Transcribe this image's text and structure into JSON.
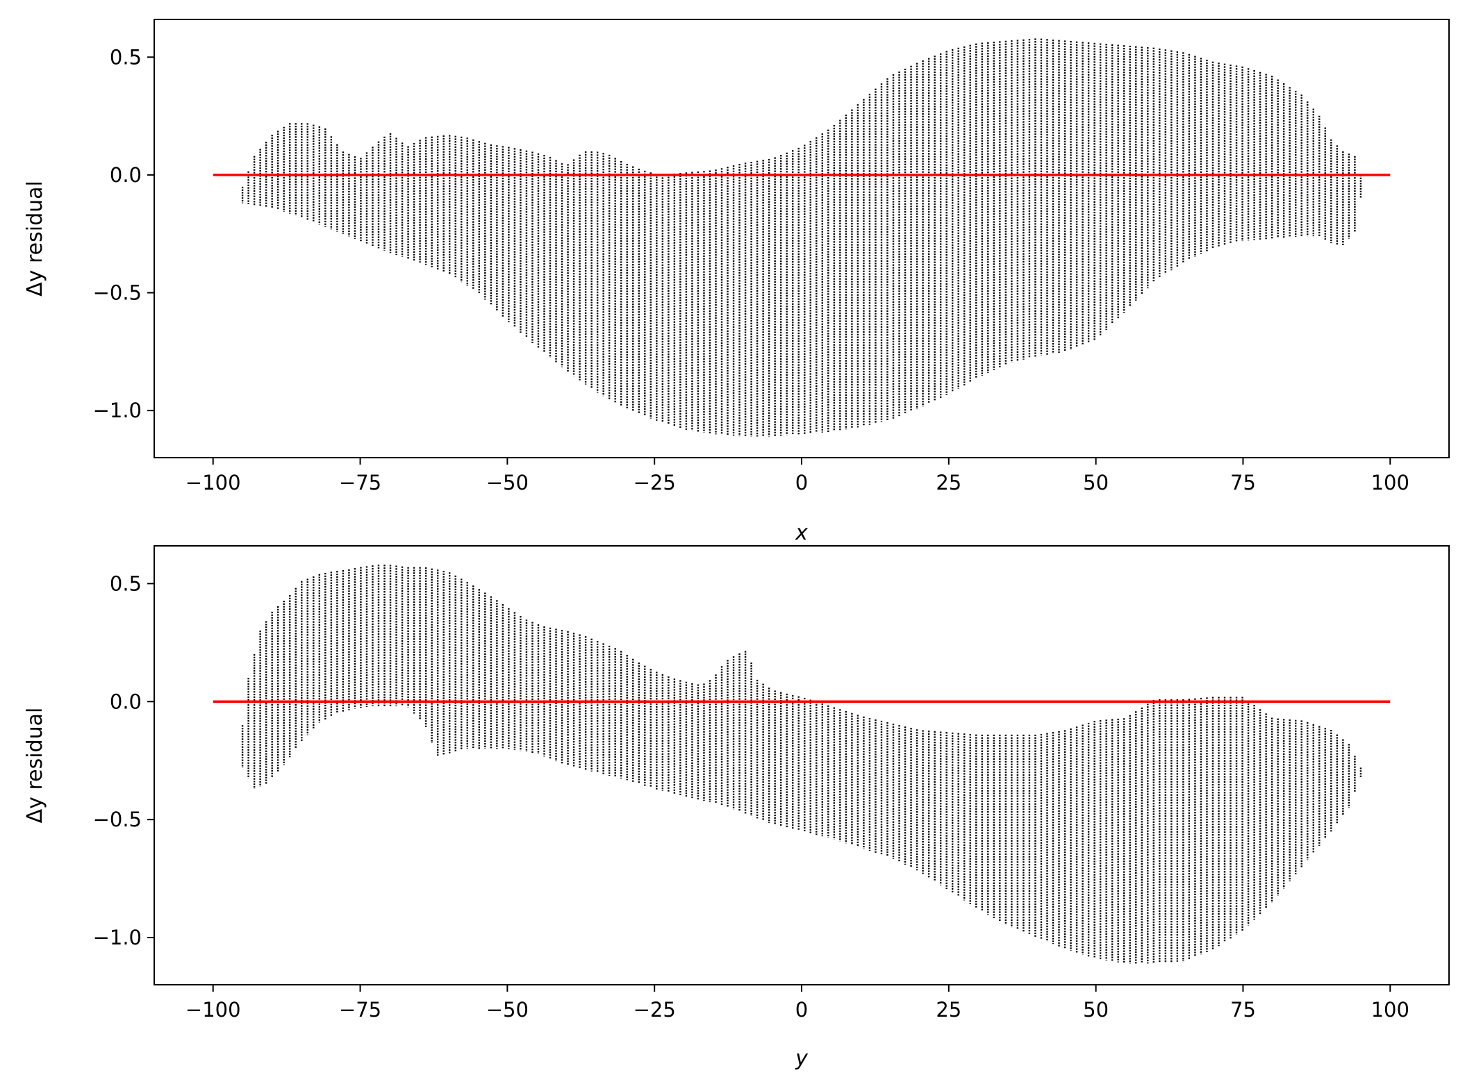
{
  "chart_data": [
    {
      "type": "scatter",
      "xlabel": "x",
      "ylabel": "Δy residual",
      "xlim": [
        -110,
        110
      ],
      "ylim": [
        -1.2,
        0.66
      ],
      "x_ticks": [
        -100,
        -75,
        -50,
        -25,
        0,
        25,
        50,
        75,
        100
      ],
      "x_tick_labels": [
        "−100",
        "−75",
        "−50",
        "−25",
        "0",
        "25",
        "50",
        "75",
        "100"
      ],
      "y_ticks": [
        0.5,
        0.0,
        -0.5,
        -1.0
      ],
      "y_tick_labels": [
        "0.5",
        "0.0",
        "−0.5",
        "−1.0"
      ],
      "grid": false,
      "x_range_of_points": [
        -95,
        95
      ],
      "upper_envelope": {
        "x": [
          -95,
          -93,
          -90,
          -87,
          -84,
          -81,
          -78,
          -75,
          -72,
          -70,
          -67,
          -64,
          -60,
          -57,
          -53,
          -50,
          -46,
          -43,
          -40,
          -37,
          -35,
          -33,
          -30,
          -27,
          -24,
          -20,
          -15,
          -10,
          -5,
          0,
          5,
          10,
          15,
          20,
          25,
          30,
          35,
          40,
          45,
          50,
          55,
          60,
          65,
          70,
          75,
          80,
          85,
          88,
          90,
          92,
          94,
          95
        ],
        "y": [
          -0.05,
          0.08,
          0.17,
          0.22,
          0.22,
          0.2,
          0.1,
          0.07,
          0.14,
          0.18,
          0.12,
          0.16,
          0.17,
          0.16,
          0.13,
          0.12,
          0.1,
          0.08,
          0.04,
          0.1,
          0.1,
          0.09,
          0.05,
          0.02,
          0.0,
          0.01,
          0.02,
          0.05,
          0.07,
          0.12,
          0.2,
          0.31,
          0.42,
          0.48,
          0.53,
          0.56,
          0.57,
          0.58,
          0.57,
          0.56,
          0.55,
          0.54,
          0.52,
          0.48,
          0.46,
          0.42,
          0.34,
          0.25,
          0.15,
          0.1,
          0.08,
          0.0
        ]
      },
      "lower_envelope": {
        "x": [
          -95,
          -90,
          -85,
          -80,
          -75,
          -70,
          -65,
          -60,
          -55,
          -50,
          -45,
          -40,
          -35,
          -30,
          -25,
          -20,
          -15,
          -10,
          -5,
          0,
          5,
          10,
          15,
          20,
          25,
          30,
          35,
          40,
          45,
          50,
          55,
          60,
          65,
          70,
          75,
          80,
          85,
          88,
          90,
          92,
          94,
          95
        ],
        "y": [
          -0.12,
          -0.14,
          -0.18,
          -0.23,
          -0.28,
          -0.33,
          -0.37,
          -0.42,
          -0.5,
          -0.62,
          -0.73,
          -0.83,
          -0.92,
          -0.99,
          -1.04,
          -1.08,
          -1.1,
          -1.11,
          -1.11,
          -1.1,
          -1.09,
          -1.07,
          -1.04,
          -0.99,
          -0.93,
          -0.86,
          -0.8,
          -0.77,
          -0.75,
          -0.7,
          -0.58,
          -0.45,
          -0.37,
          -0.31,
          -0.28,
          -0.27,
          -0.26,
          -0.26,
          -0.29,
          -0.3,
          -0.24,
          -0.1
        ]
      },
      "reference_line": {
        "x": [
          -100,
          100
        ],
        "y": [
          0.0,
          0.0
        ],
        "color": "#ff0000"
      },
      "point_color": "#000000"
    },
    {
      "type": "scatter",
      "xlabel": "y",
      "ylabel": "Δy residual",
      "xlim": [
        -110,
        110
      ],
      "ylim": [
        -1.2,
        0.66
      ],
      "x_ticks": [
        -100,
        -75,
        -50,
        -25,
        0,
        25,
        50,
        75,
        100
      ],
      "x_tick_labels": [
        "−100",
        "−75",
        "−50",
        "−25",
        "0",
        "25",
        "50",
        "75",
        "100"
      ],
      "y_ticks": [
        0.5,
        0.0,
        -0.5,
        -1.0
      ],
      "y_tick_labels": [
        "0.5",
        "0.0",
        "−0.5",
        "−1.0"
      ],
      "grid": false,
      "x_range_of_points": [
        -95,
        95
      ],
      "upper_envelope": {
        "x": [
          -95,
          -94,
          -92,
          -90,
          -87,
          -85,
          -82,
          -80,
          -77,
          -75,
          -72,
          -70,
          -67,
          -64,
          -60,
          -57,
          -53,
          -50,
          -47,
          -44,
          -40,
          -37,
          -34,
          -31,
          -28,
          -25,
          -22,
          -19,
          -17,
          -15,
          -13,
          -11,
          -9,
          -8,
          -5,
          -2,
          0,
          5,
          10,
          15,
          20,
          25,
          30,
          35,
          40,
          45,
          50,
          55,
          60,
          65,
          70,
          75,
          80,
          85,
          90,
          93,
          95
        ],
        "y": [
          -0.1,
          0.1,
          0.3,
          0.38,
          0.45,
          0.51,
          0.54,
          0.55,
          0.56,
          0.57,
          0.58,
          0.58,
          0.57,
          0.57,
          0.55,
          0.51,
          0.45,
          0.4,
          0.35,
          0.32,
          0.3,
          0.28,
          0.25,
          0.22,
          0.17,
          0.13,
          0.1,
          0.08,
          0.07,
          0.1,
          0.17,
          0.2,
          0.22,
          0.1,
          0.05,
          0.03,
          0.02,
          -0.02,
          -0.06,
          -0.09,
          -0.12,
          -0.13,
          -0.14,
          -0.14,
          -0.14,
          -0.12,
          -0.08,
          -0.07,
          0.01,
          0.01,
          0.02,
          0.02,
          -0.07,
          -0.08,
          -0.12,
          -0.18,
          -0.28
        ]
      },
      "lower_envelope": {
        "x": [
          -95,
          -93,
          -91,
          -88,
          -85,
          -82,
          -79,
          -76,
          -73,
          -70,
          -67,
          -64,
          -62,
          -60,
          -57,
          -53,
          -50,
          -45,
          -40,
          -35,
          -30,
          -25,
          -20,
          -15,
          -10,
          -5,
          0,
          5,
          10,
          15,
          20,
          25,
          30,
          35,
          40,
          45,
          50,
          55,
          60,
          65,
          70,
          75,
          80,
          85,
          90,
          93,
          95
        ],
        "y": [
          -0.28,
          -0.37,
          -0.35,
          -0.27,
          -0.17,
          -0.09,
          -0.05,
          -0.03,
          -0.02,
          -0.02,
          -0.02,
          -0.1,
          -0.23,
          -0.22,
          -0.2,
          -0.2,
          -0.2,
          -0.22,
          -0.27,
          -0.3,
          -0.33,
          -0.37,
          -0.4,
          -0.43,
          -0.47,
          -0.52,
          -0.55,
          -0.58,
          -0.62,
          -0.66,
          -0.72,
          -0.8,
          -0.88,
          -0.95,
          -1.0,
          -1.05,
          -1.09,
          -1.11,
          -1.11,
          -1.1,
          -1.05,
          -0.97,
          -0.85,
          -0.7,
          -0.55,
          -0.45,
          -0.32
        ]
      },
      "reference_line": {
        "x": [
          -100,
          100
        ],
        "y": [
          0.0,
          0.0
        ],
        "color": "#ff0000"
      },
      "point_color": "#000000"
    }
  ]
}
